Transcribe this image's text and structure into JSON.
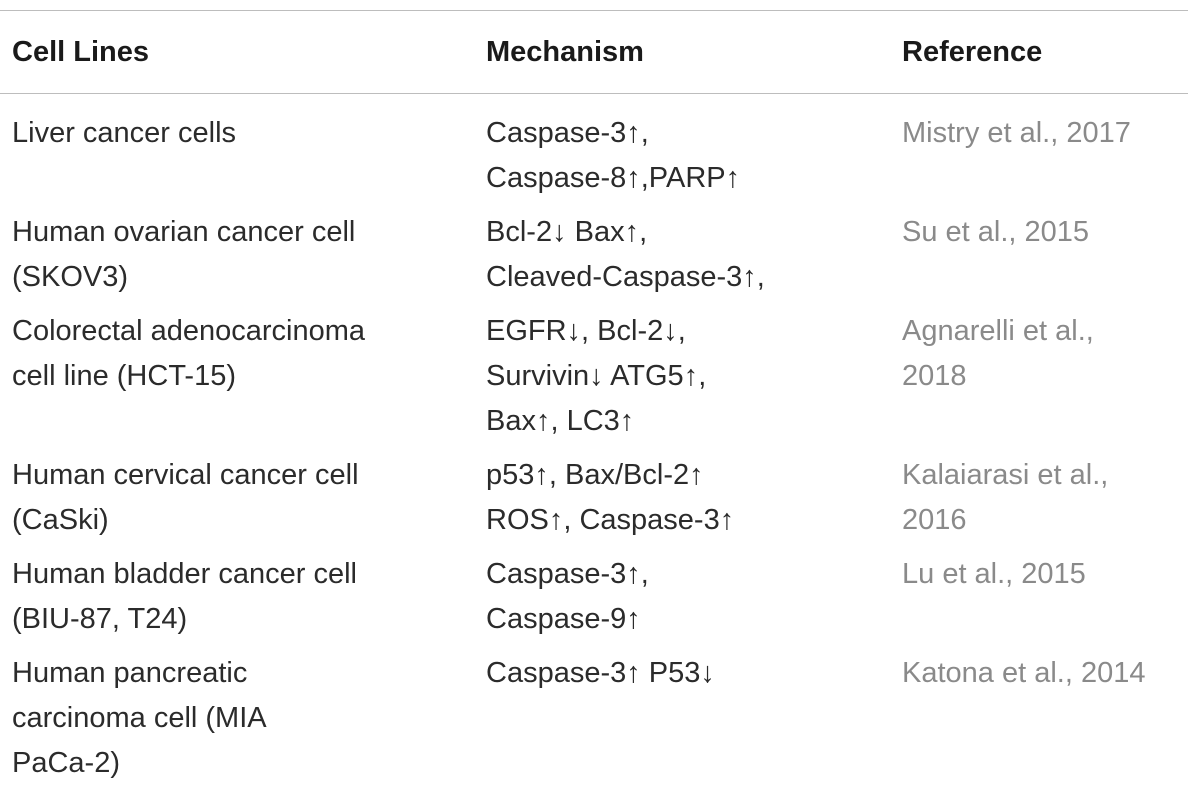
{
  "table": {
    "headers": {
      "cell_lines": "Cell Lines",
      "mechanism": "Mechanism",
      "reference": "Reference"
    },
    "rows": [
      {
        "cell_line": "Liver cancer cells",
        "mechanism": "Caspase-3↑,\nCaspase-8↑,PARP↑",
        "reference": "Mistry et al., 2017"
      },
      {
        "cell_line": "Human ovarian cancer cell\n(SKOV3)",
        "mechanism": "Bcl-2↓ Bax↑,\nCleaved-Caspase-3↑,",
        "reference": "Su et al., 2015"
      },
      {
        "cell_line": "Colorectal adenocarcinoma\ncell line (HCT-15)",
        "mechanism": "EGFR↓, Bcl-2↓,\nSurvivin↓ ATG5↑,\nBax↑, LC3↑",
        "reference": "Agnarelli et al.,\n2018"
      },
      {
        "cell_line": "Human cervical cancer cell\n(CaSki)",
        "mechanism": "p53↑, Bax/Bcl-2↑\nROS↑, Caspase-3↑",
        "reference": "Kalaiarasi et al.,\n2016"
      },
      {
        "cell_line": "Human bladder cancer cell\n(BIU-87, T24)",
        "mechanism": "Caspase-3↑,\nCaspase-9↑",
        "reference": "Lu et al., 2015"
      },
      {
        "cell_line": "Human pancreatic\ncarcinoma cell (MIA\nPaCa-2)",
        "mechanism": "Caspase-3↑ P53↓",
        "reference": "Katona et al., 2014"
      }
    ]
  }
}
